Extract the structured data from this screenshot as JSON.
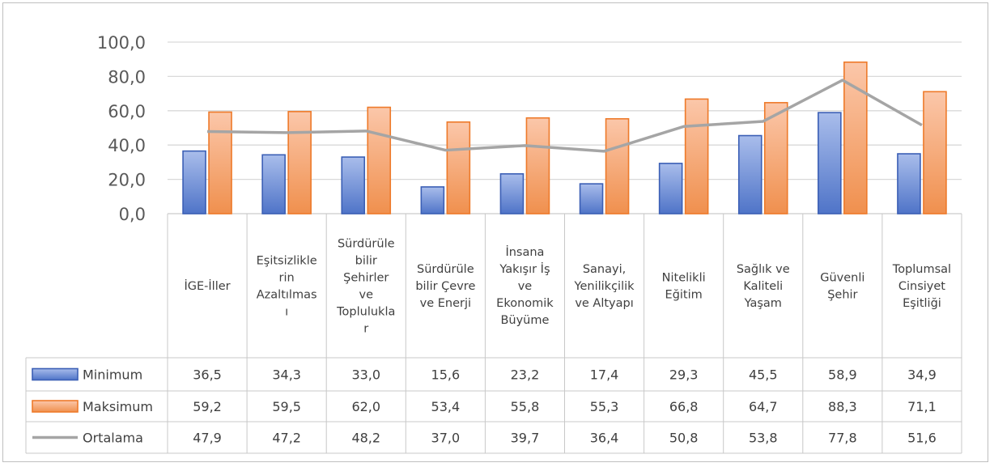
{
  "chart_data": {
    "type": "bar",
    "categories": [
      [
        "İGE-İller"
      ],
      [
        "Eşitsizlikle",
        "rin",
        "Azaltılmas",
        "ı"
      ],
      [
        "Sürdürüle",
        "bilir",
        "Şehirler",
        "ve",
        "Toplulukla",
        "r"
      ],
      [
        "Sürdürüle",
        "bilir Çevre",
        "ve Enerji"
      ],
      [
        "İnsana",
        "Yakışır İş",
        "ve",
        "Ekonomik",
        "Büyüme"
      ],
      [
        "Sanayi,",
        "Yenilikçilik",
        "ve Altyapı"
      ],
      [
        "Nitelikli",
        "Eğitim"
      ],
      [
        "Sağlık ve",
        "Kaliteli",
        "Yaşam"
      ],
      [
        "Güvenli",
        "Şehir"
      ],
      [
        "Toplumsal",
        "Cinsiyet",
        "Eşitliği"
      ]
    ],
    "series": [
      {
        "name": "Minimum",
        "kind": "bar",
        "color": "#4f74c8",
        "values": [
          36.5,
          34.3,
          33.0,
          15.6,
          23.2,
          17.4,
          29.3,
          45.5,
          58.9,
          34.9
        ],
        "labels": [
          "36,5",
          "34,3",
          "33,0",
          "15,6",
          "23,2",
          "17,4",
          "29,3",
          "45,5",
          "58,9",
          "34,9"
        ]
      },
      {
        "name": "Maksimum",
        "kind": "bar",
        "color": "#f0904e",
        "values": [
          59.2,
          59.5,
          62.0,
          53.4,
          55.8,
          55.3,
          66.8,
          64.7,
          88.3,
          71.1
        ],
        "labels": [
          "59,2",
          "59,5",
          "62,0",
          "53,4",
          "55,8",
          "55,3",
          "66,8",
          "64,7",
          "88,3",
          "71,1"
        ]
      },
      {
        "name": "Ortalama",
        "kind": "line",
        "color": "#a5a5a5",
        "values": [
          47.9,
          47.2,
          48.2,
          37.0,
          39.7,
          36.4,
          50.8,
          53.8,
          77.8,
          51.6
        ],
        "labels": [
          "47,9",
          "47,2",
          "48,2",
          "37,0",
          "39,7",
          "36,4",
          "50,8",
          "53,8",
          "77,8",
          "51,6"
        ]
      }
    ],
    "ylim": [
      0,
      100
    ],
    "yticks": [
      "0,0",
      "20,0",
      "40,0",
      "60,0",
      "80,0",
      "100,0"
    ],
    "grid": true,
    "legend": "data-table"
  }
}
